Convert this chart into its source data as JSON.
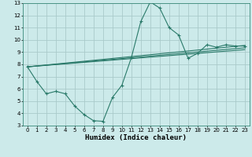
{
  "xlabel": "Humidex (Indice chaleur)",
  "bg_color": "#cceaea",
  "line_color": "#2a7a6a",
  "grid_color": "#aacaca",
  "xlim": [
    -0.5,
    23.5
  ],
  "ylim": [
    3,
    13
  ],
  "xticks": [
    0,
    1,
    2,
    3,
    4,
    5,
    6,
    7,
    8,
    9,
    10,
    11,
    12,
    13,
    14,
    15,
    16,
    17,
    18,
    19,
    20,
    21,
    22,
    23
  ],
  "yticks": [
    3,
    4,
    5,
    6,
    7,
    8,
    9,
    10,
    11,
    12,
    13
  ],
  "curve": {
    "x": [
      0,
      1,
      2,
      3,
      4,
      5,
      6,
      7,
      8,
      9,
      10,
      11,
      12,
      13,
      14,
      15,
      16,
      17,
      18,
      19,
      20,
      21,
      22,
      23
    ],
    "y": [
      7.8,
      6.6,
      5.6,
      5.8,
      5.6,
      4.6,
      3.9,
      3.4,
      3.35,
      5.3,
      6.3,
      8.55,
      11.5,
      13.1,
      12.6,
      11.0,
      10.4,
      8.5,
      8.9,
      9.6,
      9.4,
      9.6,
      9.5,
      9.5
    ]
  },
  "line1": {
    "x": [
      0,
      23
    ],
    "y": [
      7.8,
      9.55
    ]
  },
  "line2": {
    "x": [
      0,
      23
    ],
    "y": [
      7.8,
      9.2
    ]
  },
  "line3": {
    "x": [
      0,
      23
    ],
    "y": [
      7.8,
      9.35
    ]
  }
}
